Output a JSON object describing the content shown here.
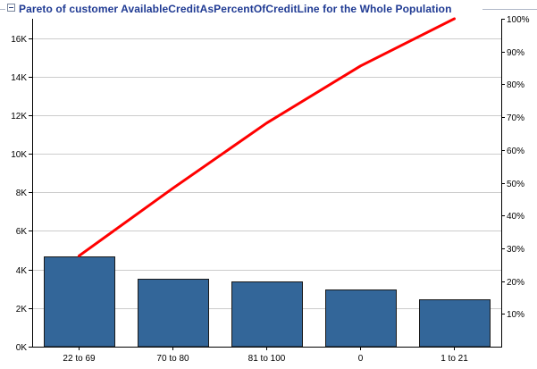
{
  "header": {
    "collapse_icon": "minus-square-icon"
  },
  "chart_data": {
    "type": "bar",
    "title": "Pareto of customer AvailableCreditAsPercentOfCreditLine for the Whole Population",
    "categories": [
      "22 to 69",
      "70 to 80",
      "81 to 100",
      "0",
      "1 to 21"
    ],
    "series": [
      {
        "type": "bar",
        "values": [
          4700,
          3500,
          3380,
          2950,
          2450
        ]
      },
      {
        "type": "line",
        "axis": "right",
        "values": [
          27.7,
          48.3,
          68.2,
          85.6,
          100
        ]
      }
    ],
    "y_left": {
      "min": 0,
      "max": 17000,
      "ticks": [
        0,
        2000,
        4000,
        6000,
        8000,
        10000,
        12000,
        14000,
        16000
      ],
      "tick_labels": [
        "0K",
        "2K",
        "4K",
        "6K",
        "8K",
        "10K",
        "12K",
        "14K",
        "16K"
      ]
    },
    "y_right": {
      "min": 0,
      "max": 100,
      "ticks": [
        10,
        20,
        30,
        40,
        50,
        60,
        70,
        80,
        90,
        100
      ],
      "tick_labels": [
        "10%",
        "20%",
        "30%",
        "40%",
        "50%",
        "60%",
        "70%",
        "80%",
        "90%",
        "100%"
      ]
    },
    "grid": true,
    "legend": "none",
    "colors": {
      "bar": "#336699",
      "bar_edge": "#1a1a1a",
      "line": "#ff0000",
      "grid": "#cccccc",
      "title": "#1f3a93"
    }
  }
}
